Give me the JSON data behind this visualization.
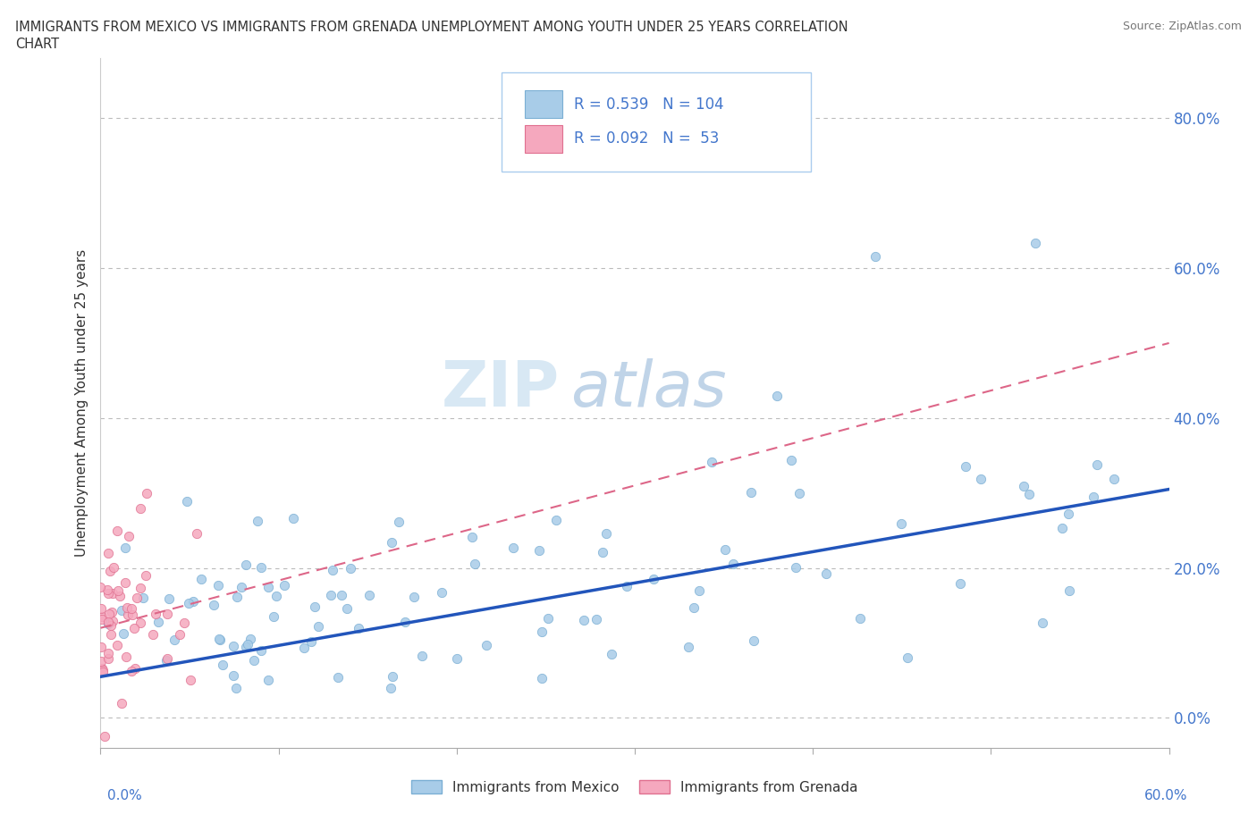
{
  "title_line1": "IMMIGRANTS FROM MEXICO VS IMMIGRANTS FROM GRENADA UNEMPLOYMENT AMONG YOUTH UNDER 25 YEARS CORRELATION",
  "title_line2": "CHART",
  "source": "Source: ZipAtlas.com",
  "ylabel": "Unemployment Among Youth under 25 years",
  "xlim": [
    0.0,
    0.6
  ],
  "ylim": [
    -0.04,
    0.88
  ],
  "mexico_color": "#a8cce8",
  "mexico_edge": "#7bafd4",
  "grenada_color": "#f5a8be",
  "grenada_edge": "#e07090",
  "mexico_line_color": "#2255bb",
  "grenada_line_color": "#dd6688",
  "R_mexico": 0.539,
  "N_mexico": 104,
  "R_grenada": 0.092,
  "N_grenada": 53,
  "watermark_zip": "ZIP",
  "watermark_atlas": "atlas",
  "background_color": "#ffffff",
  "grid_color": "#bbbbbb",
  "legend_label_mexico": "Immigrants from Mexico",
  "legend_label_grenada": "Immigrants from Grenada",
  "tick_color": "#4477cc",
  "ytick_values": [
    0.0,
    0.2,
    0.4,
    0.6,
    0.8
  ]
}
